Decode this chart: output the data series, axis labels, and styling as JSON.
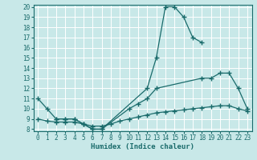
{
  "xlabel": "Humidex (Indice chaleur)",
  "bg_color": "#c8e8e8",
  "line_color": "#1a6b6b",
  "grid_color": "#ffffff",
  "xlim": [
    -0.5,
    23.5
  ],
  "ylim": [
    8,
    20
  ],
  "xticks": [
    0,
    1,
    2,
    3,
    4,
    5,
    6,
    7,
    8,
    9,
    10,
    11,
    12,
    13,
    14,
    15,
    16,
    17,
    18,
    19,
    20,
    21,
    22,
    23
  ],
  "yticks": [
    8,
    9,
    10,
    11,
    12,
    13,
    14,
    15,
    16,
    17,
    18,
    19,
    20
  ],
  "line1_x": [
    0,
    1,
    2,
    3,
    4,
    5,
    6,
    7,
    12,
    13,
    14,
    15,
    16,
    17,
    18
  ],
  "line1_y": [
    11,
    10,
    9,
    9,
    9,
    8.5,
    8,
    8,
    12,
    15,
    20,
    20,
    19,
    17,
    16.5
  ],
  "line2_x": [
    2,
    3,
    4,
    5,
    6,
    7,
    10,
    11,
    12,
    13,
    18,
    19,
    20,
    21,
    22,
    23
  ],
  "line2_y": [
    9,
    9,
    9,
    8.5,
    8,
    8,
    10,
    10.5,
    11,
    12,
    13,
    13,
    13.5,
    13.5,
    12,
    10
  ],
  "line3_x": [
    0,
    1,
    2,
    3,
    4,
    5,
    6,
    7,
    8,
    9,
    10,
    11,
    12,
    13,
    14,
    15,
    16,
    17,
    18,
    19,
    20,
    21,
    22,
    23
  ],
  "line3_y": [
    9,
    8.8,
    8.7,
    8.7,
    8.7,
    8.5,
    8.3,
    8.3,
    8.5,
    8.8,
    9.0,
    9.2,
    9.4,
    9.6,
    9.7,
    9.8,
    9.9,
    10.0,
    10.1,
    10.2,
    10.3,
    10.3,
    10.0,
    9.8
  ]
}
